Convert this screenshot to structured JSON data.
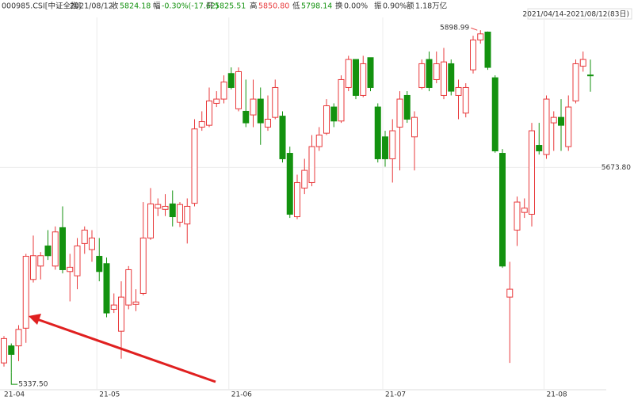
{
  "header": {
    "code": "000985.CSI[中证全指]",
    "date": "2021/08/12",
    "close_label": "收",
    "close": "5824.18",
    "change_label": "幅",
    "change": "-0.30%(-17.62)",
    "open_label": "开",
    "open": "5825.51",
    "high_label": "高",
    "high": "5850.80",
    "low_label": "低",
    "low": "5798.14",
    "turnover_label": "换",
    "turnover": "0.00%",
    "amplitude_label": "振",
    "amplitude": "0.90%",
    "amount_label": "额",
    "amount": "1.18万亿"
  },
  "range_label": "2021/04/14-2021/08/12(83日)",
  "chart_data": {
    "type": "candlestick",
    "up_color": "#e8393b",
    "down_color": "#13920f",
    "categories": [
      "21-04",
      null,
      null,
      null,
      null,
      null,
      null,
      null,
      null,
      null,
      null,
      null,
      null,
      "21-05",
      null,
      null,
      null,
      null,
      null,
      null,
      null,
      null,
      null,
      null,
      null,
      null,
      null,
      null,
      null,
      null,
      null,
      "21-06",
      null,
      null,
      null,
      null,
      null,
      null,
      null,
      null,
      null,
      null,
      null,
      null,
      null,
      null,
      null,
      null,
      null,
      null,
      null,
      null,
      "21-07",
      null,
      null,
      null,
      null,
      null,
      null,
      null,
      null,
      null,
      null,
      null,
      null,
      null,
      null,
      null,
      null,
      null,
      null,
      null,
      null,
      null,
      "21-08",
      null,
      null,
      null,
      null,
      null,
      null
    ],
    "open": [
      5353,
      5381,
      5381,
      5410,
      5490,
      5512,
      5545,
      5512,
      5575,
      5503,
      5496,
      5549,
      5539,
      5528,
      5516,
      5441,
      5405,
      5448,
      5449,
      5467,
      5558,
      5607,
      5605,
      5614,
      5584,
      5581,
      5615,
      5740,
      5743,
      5779,
      5786,
      5828,
      5770,
      5766,
      5760,
      5786,
      5740,
      5756,
      5758,
      5697,
      5593,
      5640,
      5649,
      5708,
      5730,
      5773,
      5750,
      5805,
      5851,
      5792,
      5854,
      5773,
      5724,
      5688,
      5740,
      5792,
      5724,
      5805,
      5851,
      5818,
      5792,
      5844,
      5792,
      5763,
      5834,
      5883,
      5896,
      5821,
      5697,
      5461,
      5571,
      5600,
      5597,
      5710,
      5695,
      5747,
      5756,
      5708,
      5783,
      5840,
      5825.51
    ],
    "high": [
      5397,
      5385,
      5415,
      5532,
      5562,
      5535,
      5571,
      5577,
      5610,
      5532,
      5558,
      5577,
      5571,
      5558,
      5526,
      5467,
      5487,
      5512,
      5474,
      5617,
      5640,
      5623,
      5630,
      5636,
      5617,
      5623,
      5753,
      5766,
      5805,
      5799,
      5825,
      5838,
      5838,
      5818,
      5818,
      5805,
      5792,
      5818,
      5766,
      5708,
      5662,
      5688,
      5727,
      5740,
      5786,
      5779,
      5825,
      5857,
      5851,
      5857,
      5854,
      5779,
      5734,
      5753,
      5799,
      5799,
      5766,
      5851,
      5864,
      5864,
      5870,
      5851,
      5818,
      5812,
      5890,
      5898.99,
      5897,
      5825,
      5704,
      5519,
      5626,
      5623,
      5747,
      5747,
      5792,
      5766,
      5786,
      5792,
      5851,
      5864,
      5850.8
    ],
    "low": [
      5347,
      5337.5,
      5356,
      5386,
      5485,
      5490,
      5522,
      5506,
      5500,
      5454,
      5474,
      5532,
      5519,
      5487,
      5428,
      5435,
      5360,
      5441,
      5438,
      5464,
      5555,
      5594,
      5594,
      5577,
      5576,
      5549,
      5610,
      5734,
      5740,
      5773,
      5779,
      5802,
      5766,
      5740,
      5740,
      5711,
      5734,
      5753,
      5682,
      5591,
      5589,
      5630,
      5643,
      5701,
      5727,
      5740,
      5747,
      5799,
      5786,
      5789,
      5799,
      5682,
      5675,
      5649,
      5669,
      5747,
      5669,
      5802,
      5799,
      5812,
      5786,
      5792,
      5753,
      5756,
      5828,
      5877,
      5834,
      5698,
      5509,
      5353,
      5545,
      5591,
      5577,
      5695,
      5688,
      5701,
      5701,
      5701,
      5779,
      5831,
      5798.14
    ],
    "close": [
      5393,
      5367,
      5408,
      5528,
      5529,
      5529,
      5529,
      5568,
      5506,
      5510,
      5545,
      5571,
      5558,
      5503,
      5435,
      5448,
      5461,
      5506,
      5453,
      5558,
      5614,
      5613,
      5610,
      5593,
      5613,
      5610,
      5737,
      5749,
      5783,
      5786,
      5814,
      5805,
      5831,
      5747,
      5786,
      5747,
      5753,
      5805,
      5688,
      5597,
      5649,
      5669,
      5708,
      5727,
      5775,
      5750,
      5818,
      5851,
      5792,
      5844,
      5805,
      5688,
      5688,
      5734,
      5786,
      5753,
      5756,
      5844,
      5805,
      5844,
      5847,
      5799,
      5805,
      5805,
      5883,
      5893,
      5838,
      5701,
      5512,
      5474,
      5617,
      5607,
      5734,
      5701,
      5786,
      5756,
      5743,
      5773,
      5844,
      5851,
      5824.18
    ],
    "ylim": [
      5309,
      5920
    ],
    "yticks": [
      {
        "value": 5673.8,
        "label": "5673.80"
      }
    ],
    "annotations": [
      {
        "text": "5898.99",
        "value": 5898.99
      },
      {
        "text": "5337.50",
        "value": 5337.5
      }
    ],
    "grid": true
  }
}
